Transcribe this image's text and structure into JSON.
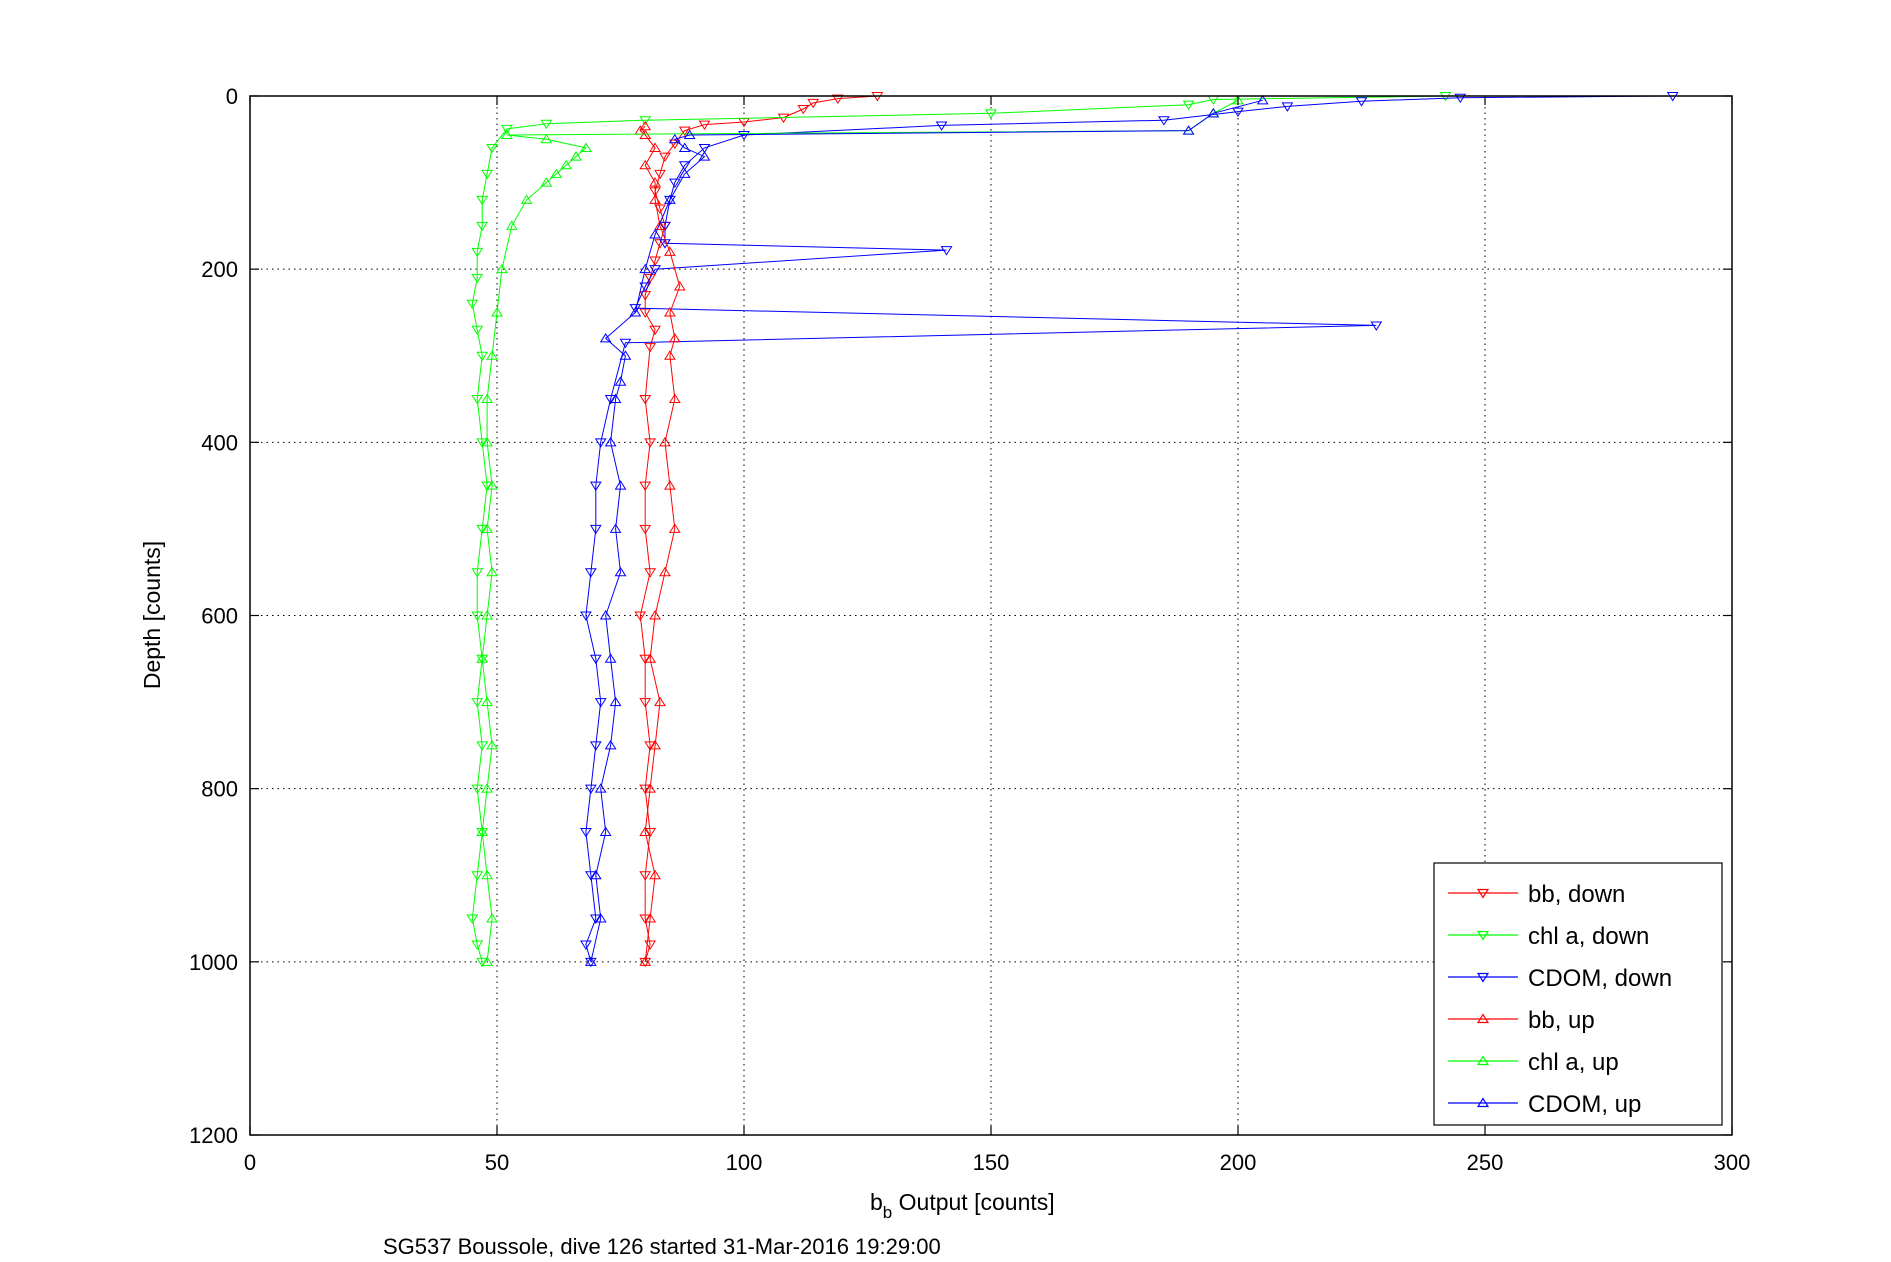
{
  "chart_data": {
    "type": "scatter",
    "xlabel_main": "b",
    "xlabel_sub": "b",
    "xlabel_rest": " Output [counts]",
    "ylabel": "Depth [counts]",
    "caption": "SG537 Boussole, dive 126 started 31-Mar-2016 19:29:00",
    "xlim": [
      0,
      300
    ],
    "ylim": [
      0,
      1200
    ],
    "y_reversed": true,
    "grid": true,
    "legend_position": "bottom-right",
    "x_ticks": [
      0,
      50,
      100,
      150,
      200,
      250,
      300
    ],
    "y_ticks": [
      0,
      200,
      400,
      600,
      800,
      1000,
      1200
    ],
    "series": [
      {
        "name": "bb, down",
        "color": "#ff0000",
        "marker": "triangle-down",
        "line": true,
        "x": [
          127,
          119,
          114,
          112,
          108,
          100,
          92,
          88,
          86,
          84,
          83,
          82,
          83,
          84,
          83,
          82,
          81,
          80,
          80,
          82,
          81,
          80,
          81,
          80,
          80,
          81,
          79,
          80,
          80,
          81,
          80,
          81,
          80,
          80,
          81,
          80
        ],
        "y": [
          0,
          3,
          8,
          15,
          25,
          30,
          33,
          40,
          55,
          70,
          90,
          110,
          130,
          150,
          170,
          190,
          210,
          230,
          250,
          270,
          290,
          350,
          400,
          450,
          500,
          550,
          600,
          650,
          700,
          750,
          800,
          850,
          900,
          950,
          980,
          1000
        ]
      },
      {
        "name": "chl a, down",
        "color": "#00ff00",
        "marker": "triangle-down",
        "line": true,
        "x": [
          242,
          195,
          190,
          150,
          80,
          60,
          52,
          49,
          48,
          47,
          47,
          46,
          46,
          45,
          46,
          47,
          46,
          47,
          48,
          47,
          46,
          46,
          47,
          46,
          47,
          46,
          47,
          46,
          45,
          46,
          47
        ],
        "y": [
          0,
          4,
          10,
          20,
          28,
          32,
          38,
          60,
          90,
          120,
          150,
          180,
          210,
          240,
          270,
          300,
          350,
          400,
          450,
          500,
          550,
          600,
          650,
          700,
          750,
          800,
          850,
          900,
          950,
          980,
          1000
        ]
      },
      {
        "name": "CDOM, down",
        "color": "#0000ff",
        "marker": "triangle-down",
        "line": true,
        "x": [
          288,
          245,
          225,
          210,
          200,
          185,
          140,
          100,
          92,
          88,
          86,
          85,
          84,
          84,
          141,
          82,
          80,
          78,
          228,
          76,
          73,
          71,
          70,
          70,
          69,
          68,
          70,
          71,
          70,
          69,
          68,
          69,
          70,
          68,
          69
        ],
        "y": [
          0,
          2,
          6,
          12,
          18,
          28,
          34,
          45,
          60,
          80,
          100,
          120,
          150,
          170,
          178,
          200,
          220,
          245,
          265,
          285,
          350,
          400,
          450,
          500,
          550,
          600,
          650,
          700,
          750,
          800,
          850,
          900,
          950,
          980,
          1000
        ]
      },
      {
        "name": "bb, up",
        "color": "#ff0000",
        "marker": "triangle-up",
        "line": true,
        "x": [
          80,
          81,
          82,
          80,
          81,
          82,
          83,
          81,
          82,
          84,
          86,
          85,
          84,
          86,
          85,
          86,
          85,
          87,
          85,
          83,
          82,
          82,
          80,
          82,
          80,
          79,
          80
        ],
        "y": [
          1000,
          950,
          900,
          850,
          800,
          750,
          700,
          650,
          600,
          550,
          500,
          450,
          400,
          350,
          300,
          280,
          250,
          220,
          180,
          150,
          120,
          100,
          80,
          60,
          45,
          40,
          35
        ]
      },
      {
        "name": "chl a, up",
        "color": "#00ff00",
        "marker": "triangle-up",
        "line": true,
        "x": [
          48,
          49,
          48,
          47,
          48,
          49,
          48,
          47,
          48,
          49,
          48,
          49,
          48,
          48,
          49,
          50,
          51,
          53,
          56,
          60,
          62,
          64,
          66,
          68,
          60,
          52,
          190,
          195,
          200
        ],
        "y": [
          1000,
          950,
          900,
          850,
          800,
          750,
          700,
          650,
          600,
          550,
          500,
          450,
          400,
          350,
          300,
          250,
          200,
          150,
          120,
          100,
          90,
          80,
          70,
          60,
          50,
          45,
          40,
          20,
          5
        ]
      },
      {
        "name": "CDOM, up",
        "color": "#0000ff",
        "marker": "triangle-up",
        "line": true,
        "x": [
          69,
          71,
          70,
          72,
          71,
          73,
          74,
          73,
          72,
          75,
          74,
          75,
          73,
          74,
          75,
          76,
          72,
          78,
          80,
          82,
          85,
          88,
          92,
          88,
          86,
          89,
          190,
          195,
          205
        ],
        "y": [
          1000,
          950,
          900,
          850,
          800,
          750,
          700,
          650,
          600,
          550,
          500,
          450,
          400,
          350,
          330,
          300,
          280,
          250,
          200,
          160,
          120,
          90,
          70,
          60,
          50,
          45,
          40,
          20,
          5
        ]
      }
    ]
  }
}
